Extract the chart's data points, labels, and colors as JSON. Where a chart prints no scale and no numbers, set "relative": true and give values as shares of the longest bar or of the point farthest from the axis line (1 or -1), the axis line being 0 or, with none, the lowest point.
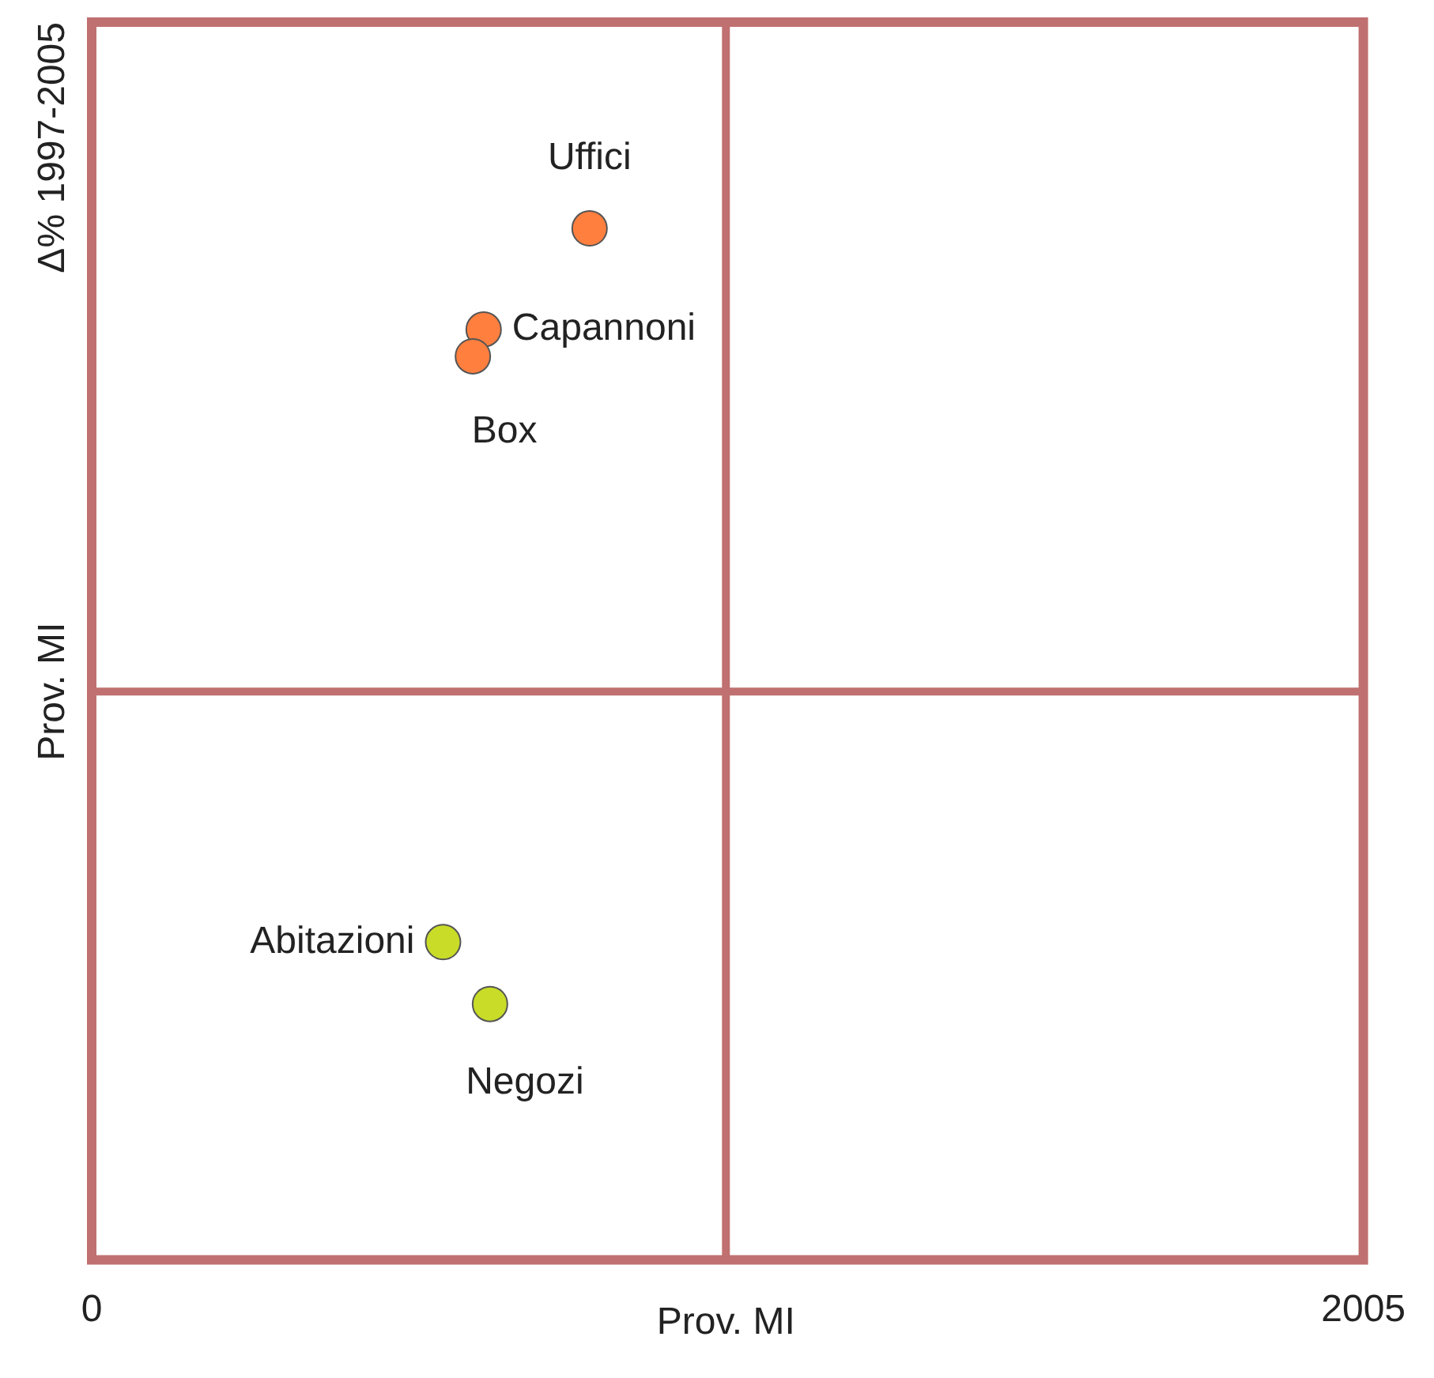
{
  "chart_data": {
    "type": "scatter",
    "ylabel": "Δ% 1997-2005",
    "relative": true,
    "xlim": [
      0,
      2005
    ],
    "xticks": [
      0,
      2005
    ],
    "marker": "circle",
    "series": [
      {
        "color": "#ff7f3f",
        "x": [
          785,
          618,
          601
        ],
        "values": [
          1,
          0.902,
          0.876
        ]
      },
      {
        "color": "#c8dc28",
        "x": [
          554,
          628
        ],
        "values": [
          0.308,
          0.248
        ]
      }
    ],
    "ref_lines": [
      {
        "axis": "x",
        "value": 1000,
        "label": "Prov. MI",
        "color": "#c07070"
      },
      {
        "axis": "y",
        "value": 0.551,
        "label": "Prov. MI",
        "color": "#c07070"
      }
    ],
    "annotations": [
      {
        "text": "Uffici",
        "x": 785,
        "y": 1
      },
      {
        "text": "Capannoni",
        "x": 618,
        "y": 0.902
      },
      {
        "text": "Box",
        "x": 601,
        "y": 0.876
      },
      {
        "text": "Abitazioni",
        "x": 554,
        "y": 0.308
      },
      {
        "text": "Negozi",
        "x": 628,
        "y": 0.248
      }
    ]
  }
}
